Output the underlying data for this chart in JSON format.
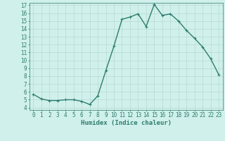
{
  "x": [
    0,
    1,
    2,
    3,
    4,
    5,
    6,
    7,
    8,
    9,
    10,
    11,
    12,
    13,
    14,
    15,
    16,
    17,
    18,
    19,
    20,
    21,
    22,
    23
  ],
  "y": [
    5.7,
    5.1,
    4.9,
    4.9,
    5.0,
    5.0,
    4.8,
    4.4,
    5.5,
    8.7,
    11.8,
    15.2,
    15.5,
    15.9,
    14.3,
    17.1,
    15.7,
    15.9,
    15.0,
    13.8,
    12.8,
    11.7,
    10.2,
    8.2
  ],
  "line_color": "#2e7d6e",
  "marker": "+",
  "background_color": "#d0f0eb",
  "grid_color": "#b8d8d4",
  "xlabel": "Humidex (Indice chaleur)",
  "ylim": [
    4,
    17
  ],
  "xlim": [
    -0.5,
    23.5
  ],
  "yticks": [
    4,
    5,
    6,
    7,
    8,
    9,
    10,
    11,
    12,
    13,
    14,
    15,
    16,
    17
  ],
  "xticks": [
    0,
    1,
    2,
    3,
    4,
    5,
    6,
    7,
    8,
    9,
    10,
    11,
    12,
    13,
    14,
    15,
    16,
    17,
    18,
    19,
    20,
    21,
    22,
    23
  ],
  "tick_fontsize": 5.5,
  "xlabel_fontsize": 6.5,
  "line_width": 1.0,
  "marker_size": 3.5,
  "marker_edge_width": 0.8
}
